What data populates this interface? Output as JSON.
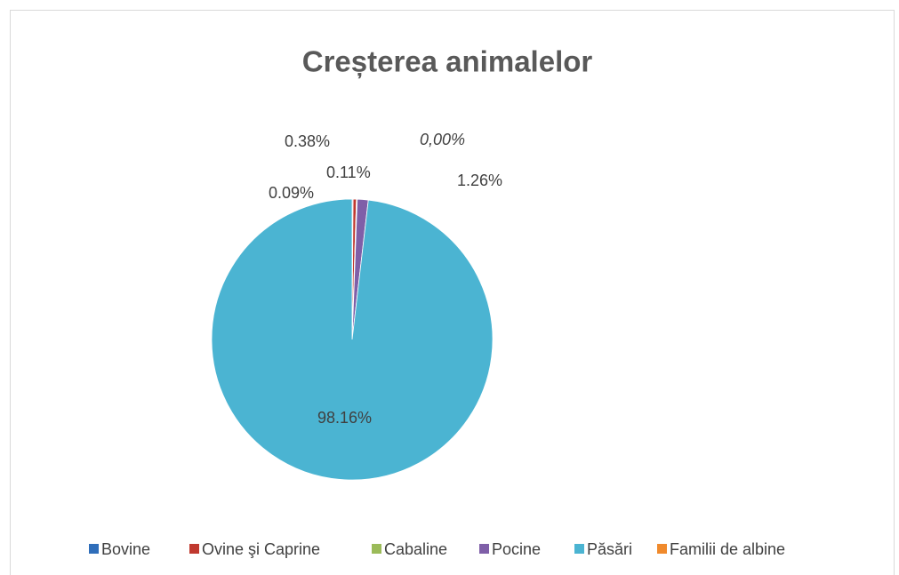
{
  "chart_data": {
    "type": "pie",
    "title": "Creșterea animalelor",
    "categories": [
      "Bovine",
      "Ovine şi Caprine",
      "Cabaline",
      "Pocine",
      "Păsări",
      "Familii de albine"
    ],
    "values": [
      0.11,
      0.38,
      0.09,
      1.26,
      98.16,
      0
    ],
    "value_labels": [
      "0.11%",
      "0.38%",
      "0.09%",
      "1.26%",
      "98.16%",
      "0,00%"
    ],
    "colors": [
      "#2f6eba",
      "#c0392f",
      "#9bbb59",
      "#7f5fa8",
      "#4bb4d2",
      "#f08a2c"
    ],
    "legend": "bottom"
  }
}
